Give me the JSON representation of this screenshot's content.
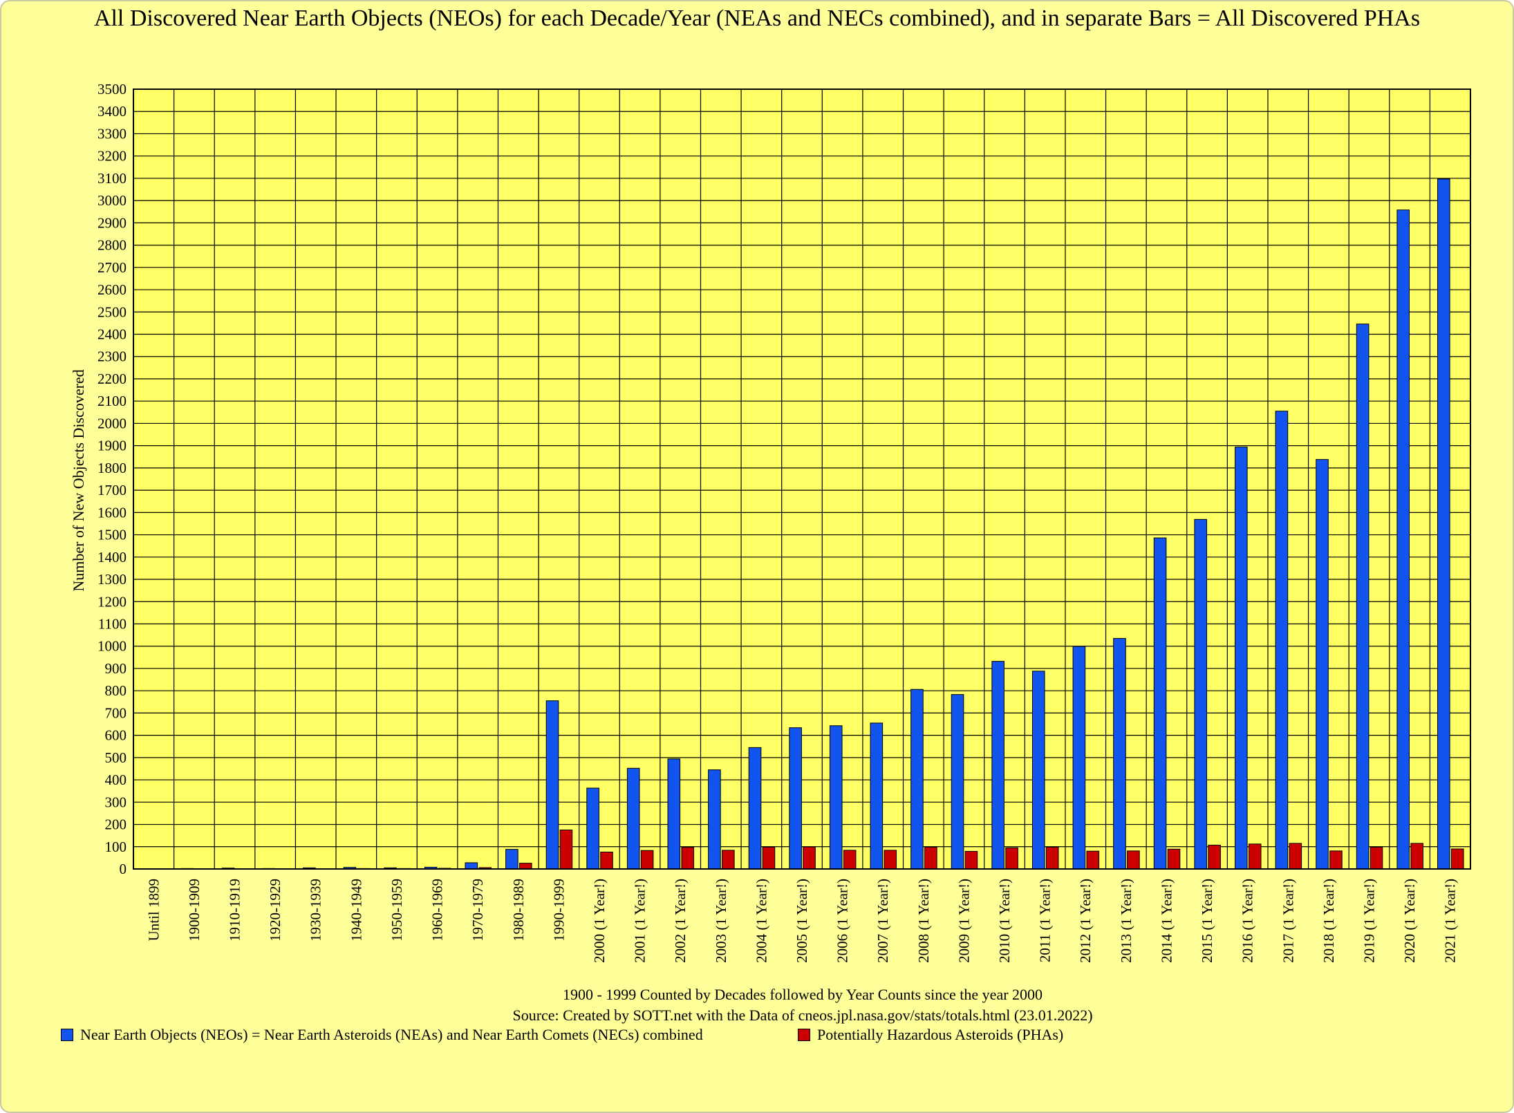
{
  "chart_data": {
    "type": "bar",
    "title": "All Discovered Near Earth Objects (NEOs) for each Decade/Year (NEAs and NECs combined), and in separate Bars = All Discovered PHAs",
    "xlabel_lines": [
      "1900 - 1999 Counted by Decades followed by Year Counts since the year 2000",
      "Source: Created by SOTT.net with the Data of cneos.jpl.nasa.gov/stats/totals.html (23.01.2022)"
    ],
    "ylabel": "Number of New Objects Discovered",
    "ylim": [
      0,
      3500
    ],
    "yticks": [
      0,
      100,
      200,
      300,
      400,
      500,
      600,
      700,
      800,
      900,
      1000,
      1100,
      1200,
      1300,
      1400,
      1500,
      1600,
      1700,
      1800,
      1900,
      2000,
      2100,
      2200,
      2300,
      2400,
      2500,
      2600,
      2700,
      2800,
      2900,
      3000,
      3100,
      3200,
      3300,
      3400,
      3500
    ],
    "grid": true,
    "legend_position": "bottom-left",
    "categories": [
      "Until 1899",
      "1900-1909",
      "1910-1919",
      "1920-1929",
      "1930-1939",
      "1940-1949",
      "1950-1959",
      "1960-1969",
      "1970-1979",
      "1980-1989",
      "1990-1999",
      "2000  (1 Year!)",
      "2001  (1 Year!)",
      "2002  (1 Year!)",
      "2003  (1 Year!)",
      "2004  (1 Year!)",
      "2005  (1 Year!)",
      "2006  (1 Year!)",
      "2007  (1 Year!)",
      "2008  (1 Year!)",
      "2009  (1 Year!)",
      "2010  (1 Year!)",
      "2011  (1 Year!)",
      "2012  (1 Year!)",
      "2013  (1 Year!)",
      "2014  (1 Year!)",
      "2015  (1 Year!)",
      "2016  (1 Year!)",
      "2017  (1 Year!)",
      "2018  (1 Year!)",
      "2019  (1 Year!)",
      "2020  (1 Year!)",
      "2021  (1 Year!)"
    ],
    "series": [
      {
        "name": "Near Earth Objects (NEOs) = Near Earth Asteroids (NEAs) and Near Earth Comets (NECs) combined",
        "color": "#1155ee",
        "values": [
          1,
          2,
          4,
          2,
          5,
          7,
          5,
          8,
          28,
          88,
          755,
          363,
          452,
          494,
          445,
          545,
          634,
          643,
          655,
          806,
          783,
          932,
          888,
          999,
          1035,
          1486,
          1569,
          1894,
          2055,
          1838,
          2446,
          2958,
          3097
        ]
      },
      {
        "name": "Potentially Hazardous Asteroids (PHAs)",
        "color": "#cc0000",
        "values": [
          0,
          0,
          1,
          0,
          1,
          2,
          2,
          3,
          6,
          26,
          175,
          76,
          83,
          97,
          84,
          98,
          99,
          84,
          84,
          98,
          79,
          95,
          98,
          80,
          81,
          89,
          107,
          112,
          115,
          81,
          98,
          115,
          90
        ]
      }
    ]
  }
}
